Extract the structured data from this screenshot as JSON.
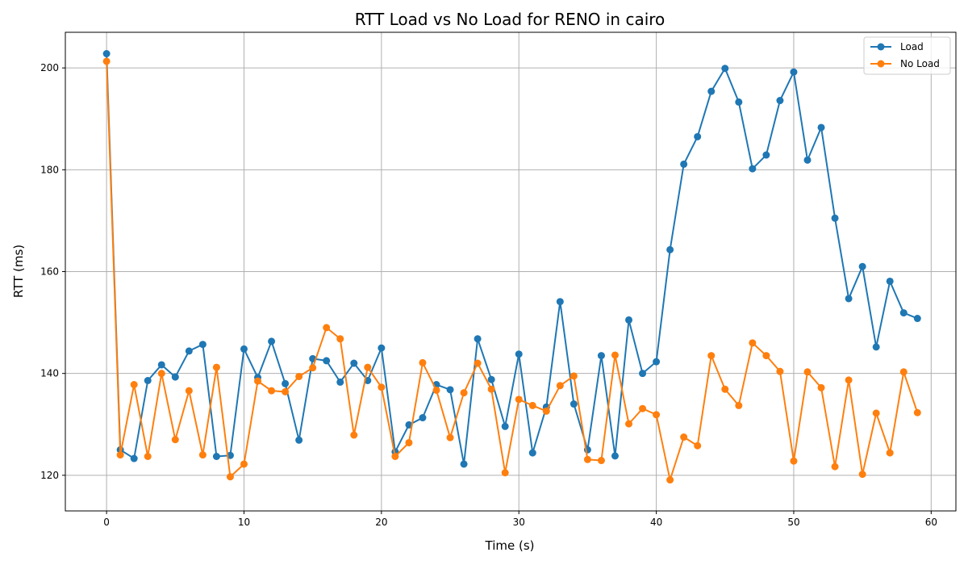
{
  "chart_data": {
    "type": "line",
    "title": "RTT Load vs No Load for RENO in cairo",
    "xlabel": "Time (s)",
    "ylabel": "RTT (ms)",
    "xlim": [
      -3,
      61.8
    ],
    "ylim": [
      113,
      207
    ],
    "xticks": [
      0,
      10,
      20,
      30,
      40,
      50,
      60
    ],
    "yticks": [
      120,
      140,
      160,
      180,
      200
    ],
    "grid": true,
    "legend_position": "top-right",
    "x": [
      0,
      1,
      2,
      3,
      4,
      5,
      6,
      7,
      8,
      9,
      10,
      11,
      12,
      13,
      14,
      15,
      16,
      17,
      18,
      19,
      20,
      21,
      22,
      23,
      24,
      25,
      26,
      27,
      28,
      29,
      30,
      31,
      32,
      33,
      34,
      35,
      36,
      37,
      38,
      39,
      40,
      41,
      42,
      43,
      44,
      45,
      46,
      47,
      48,
      49,
      50,
      51,
      52,
      53,
      54,
      55,
      56,
      57,
      58,
      59
    ],
    "series": [
      {
        "name": "Load",
        "color": "#1f77b4",
        "values": [
          202.8,
          125.0,
          123.3,
          138.6,
          141.7,
          139.3,
          144.4,
          145.7,
          123.7,
          123.9,
          144.8,
          139.2,
          146.3,
          138.0,
          126.9,
          142.9,
          142.5,
          138.3,
          142.0,
          138.6,
          145.0,
          124.6,
          129.9,
          131.3,
          137.8,
          136.8,
          122.2,
          146.8,
          138.8,
          129.6,
          143.8,
          124.4,
          133.4,
          154.1,
          134.0,
          125.0,
          143.5,
          123.8,
          150.5,
          140.0,
          142.3,
          164.3,
          181.1,
          186.5,
          195.4,
          199.9,
          193.3,
          180.2,
          182.9,
          193.6,
          199.2,
          181.9,
          188.3,
          170.5,
          154.7,
          161.0,
          145.2,
          158.1,
          151.9,
          150.8
        ]
      },
      {
        "name": "No Load",
        "color": "#ff7f0e",
        "values": [
          201.3,
          124.0,
          137.8,
          123.7,
          140.0,
          127.0,
          136.6,
          124.0,
          141.2,
          119.7,
          122.2,
          138.5,
          136.6,
          136.4,
          139.4,
          141.1,
          149.0,
          146.8,
          127.9,
          141.2,
          137.3,
          123.7,
          126.4,
          142.1,
          136.7,
          127.4,
          136.2,
          142.0,
          136.9,
          120.5,
          134.9,
          133.7,
          132.6,
          137.6,
          139.5,
          123.1,
          122.9,
          143.6,
          130.1,
          133.1,
          131.9,
          119.1,
          127.5,
          125.8,
          143.5,
          136.9,
          133.7,
          146.0,
          143.5,
          140.4,
          122.8,
          140.3,
          137.2,
          121.7,
          138.7,
          120.2,
          132.2,
          124.4,
          140.3,
          132.3
        ]
      }
    ]
  }
}
